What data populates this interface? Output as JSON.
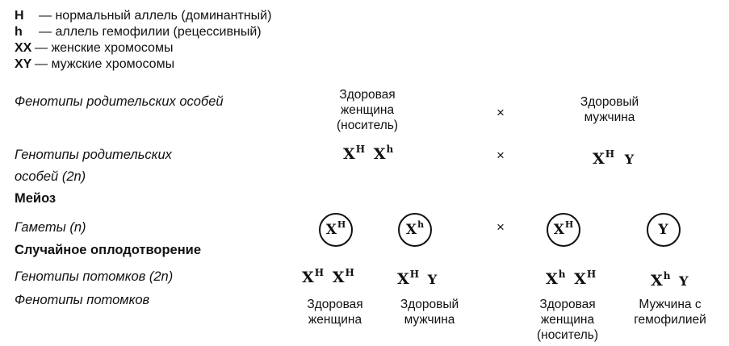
{
  "legend": [
    {
      "sym": "H",
      "dash": "—",
      "text": "нормальный аллель (доминантный)"
    },
    {
      "sym": "h",
      "dash": "—",
      "text": "аллель гемофилии (рецессивный)"
    },
    {
      "sym": "XX",
      "dash": "—",
      "text": "женские хромосомы"
    },
    {
      "sym": "XY",
      "dash": "—",
      "text": "мужские хромосомы"
    }
  ],
  "rows": {
    "parent_phenotypes": "Фенотипы родительских особей",
    "parent_genotypes_1": "Генотипы родительских",
    "parent_genotypes_2": "особей (2n)",
    "meiosis": "Мейоз",
    "gametes": "Гаметы (n)",
    "fertilization": "Случайное оплодотворение",
    "offspring_genotypes": "Генотипы потомков (2n)",
    "offspring_phenotypes": "Фенотипы потомков"
  },
  "cross_symbol": "×",
  "parents": {
    "female_phenotype": "Здоровая женщина (носитель)",
    "male_phenotype": "Здоровый мужчина",
    "female_genotype": [
      {
        "b": "X",
        "s": "H"
      },
      {
        "b": "X",
        "s": "h"
      }
    ],
    "male_genotype": [
      {
        "b": "X",
        "s": "H"
      },
      {
        "b": "Y",
        "s": ""
      }
    ]
  },
  "gametes": [
    {
      "b": "X",
      "s": "H"
    },
    {
      "b": "X",
      "s": "h"
    },
    {
      "b": "X",
      "s": "H"
    },
    {
      "b": "Y",
      "s": ""
    }
  ],
  "offspring": [
    {
      "genotype": [
        {
          "b": "X",
          "s": "H"
        },
        {
          "b": "X",
          "s": "H"
        }
      ],
      "phenotype": "Здоровая женщина"
    },
    {
      "genotype": [
        {
          "b": "X",
          "s": "H"
        },
        {
          "b": "Y",
          "s": ""
        }
      ],
      "phenotype": "Здоровый мужчина"
    },
    {
      "genotype": [
        {
          "b": "X",
          "s": "h"
        },
        {
          "b": "X",
          "s": "H"
        }
      ],
      "phenotype": "Здоровая женщина (носитель)"
    },
    {
      "genotype": [
        {
          "b": "X",
          "s": "h"
        },
        {
          "b": "Y",
          "s": ""
        }
      ],
      "phenotype": "Мужчина с гемофилией"
    }
  ]
}
